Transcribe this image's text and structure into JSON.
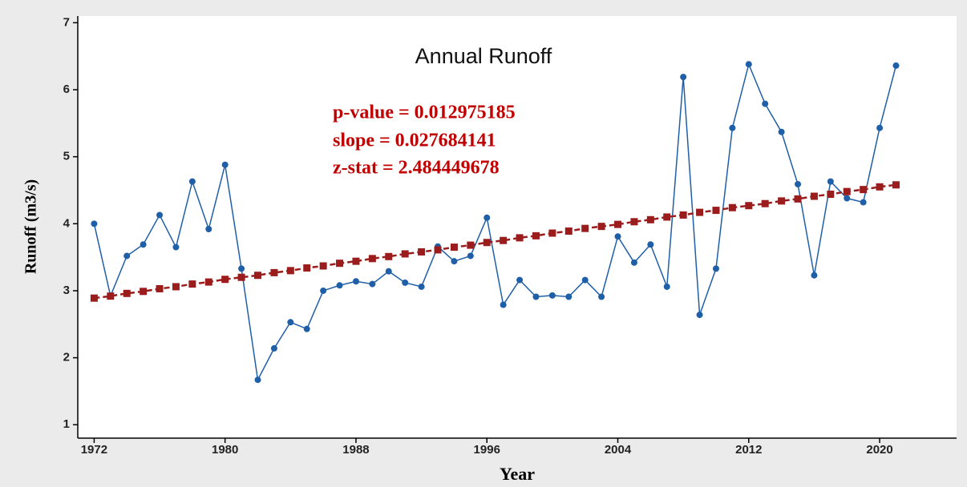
{
  "chart_data": {
    "type": "line",
    "title": "Annual Runoff",
    "x_label": "Year",
    "y_label": "Runoff (m3/s)",
    "annotations": [
      "p-value = 0.012975185",
      "slope =  0.027684141",
      "z-stat = 2.484449678"
    ],
    "x": [
      1972,
      1973,
      1974,
      1975,
      1976,
      1977,
      1978,
      1979,
      1980,
      1981,
      1982,
      1983,
      1984,
      1985,
      1986,
      1987,
      1988,
      1989,
      1990,
      1991,
      1992,
      1993,
      1994,
      1995,
      1996,
      1997,
      1998,
      1999,
      2000,
      2001,
      2002,
      2003,
      2004,
      2005,
      2006,
      2007,
      2008,
      2009,
      2010,
      2011,
      2012,
      2013,
      2014,
      2015,
      2016,
      2017,
      2018,
      2019,
      2020,
      2021
    ],
    "series": [
      {
        "color": "#1f5fa8",
        "marker": "circle",
        "dashed": false,
        "values": [
          4.0,
          2.92,
          3.52,
          3.69,
          4.13,
          3.65,
          4.63,
          3.92,
          4.88,
          3.33,
          1.67,
          2.14,
          2.53,
          2.43,
          3.0,
          3.08,
          3.14,
          3.1,
          3.29,
          3.12,
          3.06,
          3.66,
          3.44,
          3.52,
          4.09,
          2.79,
          3.16,
          2.91,
          2.93,
          2.91,
          3.16,
          2.91,
          3.81,
          3.42,
          3.69,
          3.06,
          6.19,
          2.64,
          3.33,
          5.43,
          6.38,
          5.79,
          5.37,
          4.59,
          3.23,
          4.63,
          4.38,
          4.32,
          5.43,
          6.36
        ]
      },
      {
        "color": "#9b1c1c",
        "marker": "square",
        "dashed": true,
        "values": [
          2.89,
          2.92,
          2.96,
          2.99,
          3.03,
          3.06,
          3.1,
          3.13,
          3.17,
          3.2,
          3.23,
          3.27,
          3.3,
          3.34,
          3.37,
          3.41,
          3.44,
          3.48,
          3.51,
          3.55,
          3.58,
          3.61,
          3.65,
          3.68,
          3.72,
          3.75,
          3.79,
          3.82,
          3.86,
          3.89,
          3.93,
          3.96,
          3.99,
          4.03,
          4.06,
          4.1,
          4.13,
          4.17,
          4.2,
          4.24,
          4.27,
          4.3,
          4.34,
          4.37,
          4.41,
          4.44,
          4.48,
          4.51,
          4.55,
          4.58
        ]
      }
    ],
    "xlim": [
      1971,
      2024.7
    ],
    "ylim": [
      0.8,
      7.1
    ],
    "xticks": [
      1972,
      1980,
      1988,
      1996,
      2004,
      2012,
      2020
    ],
    "yticks": [
      1,
      2,
      3,
      4,
      5,
      6,
      7
    ],
    "grid": false
  }
}
